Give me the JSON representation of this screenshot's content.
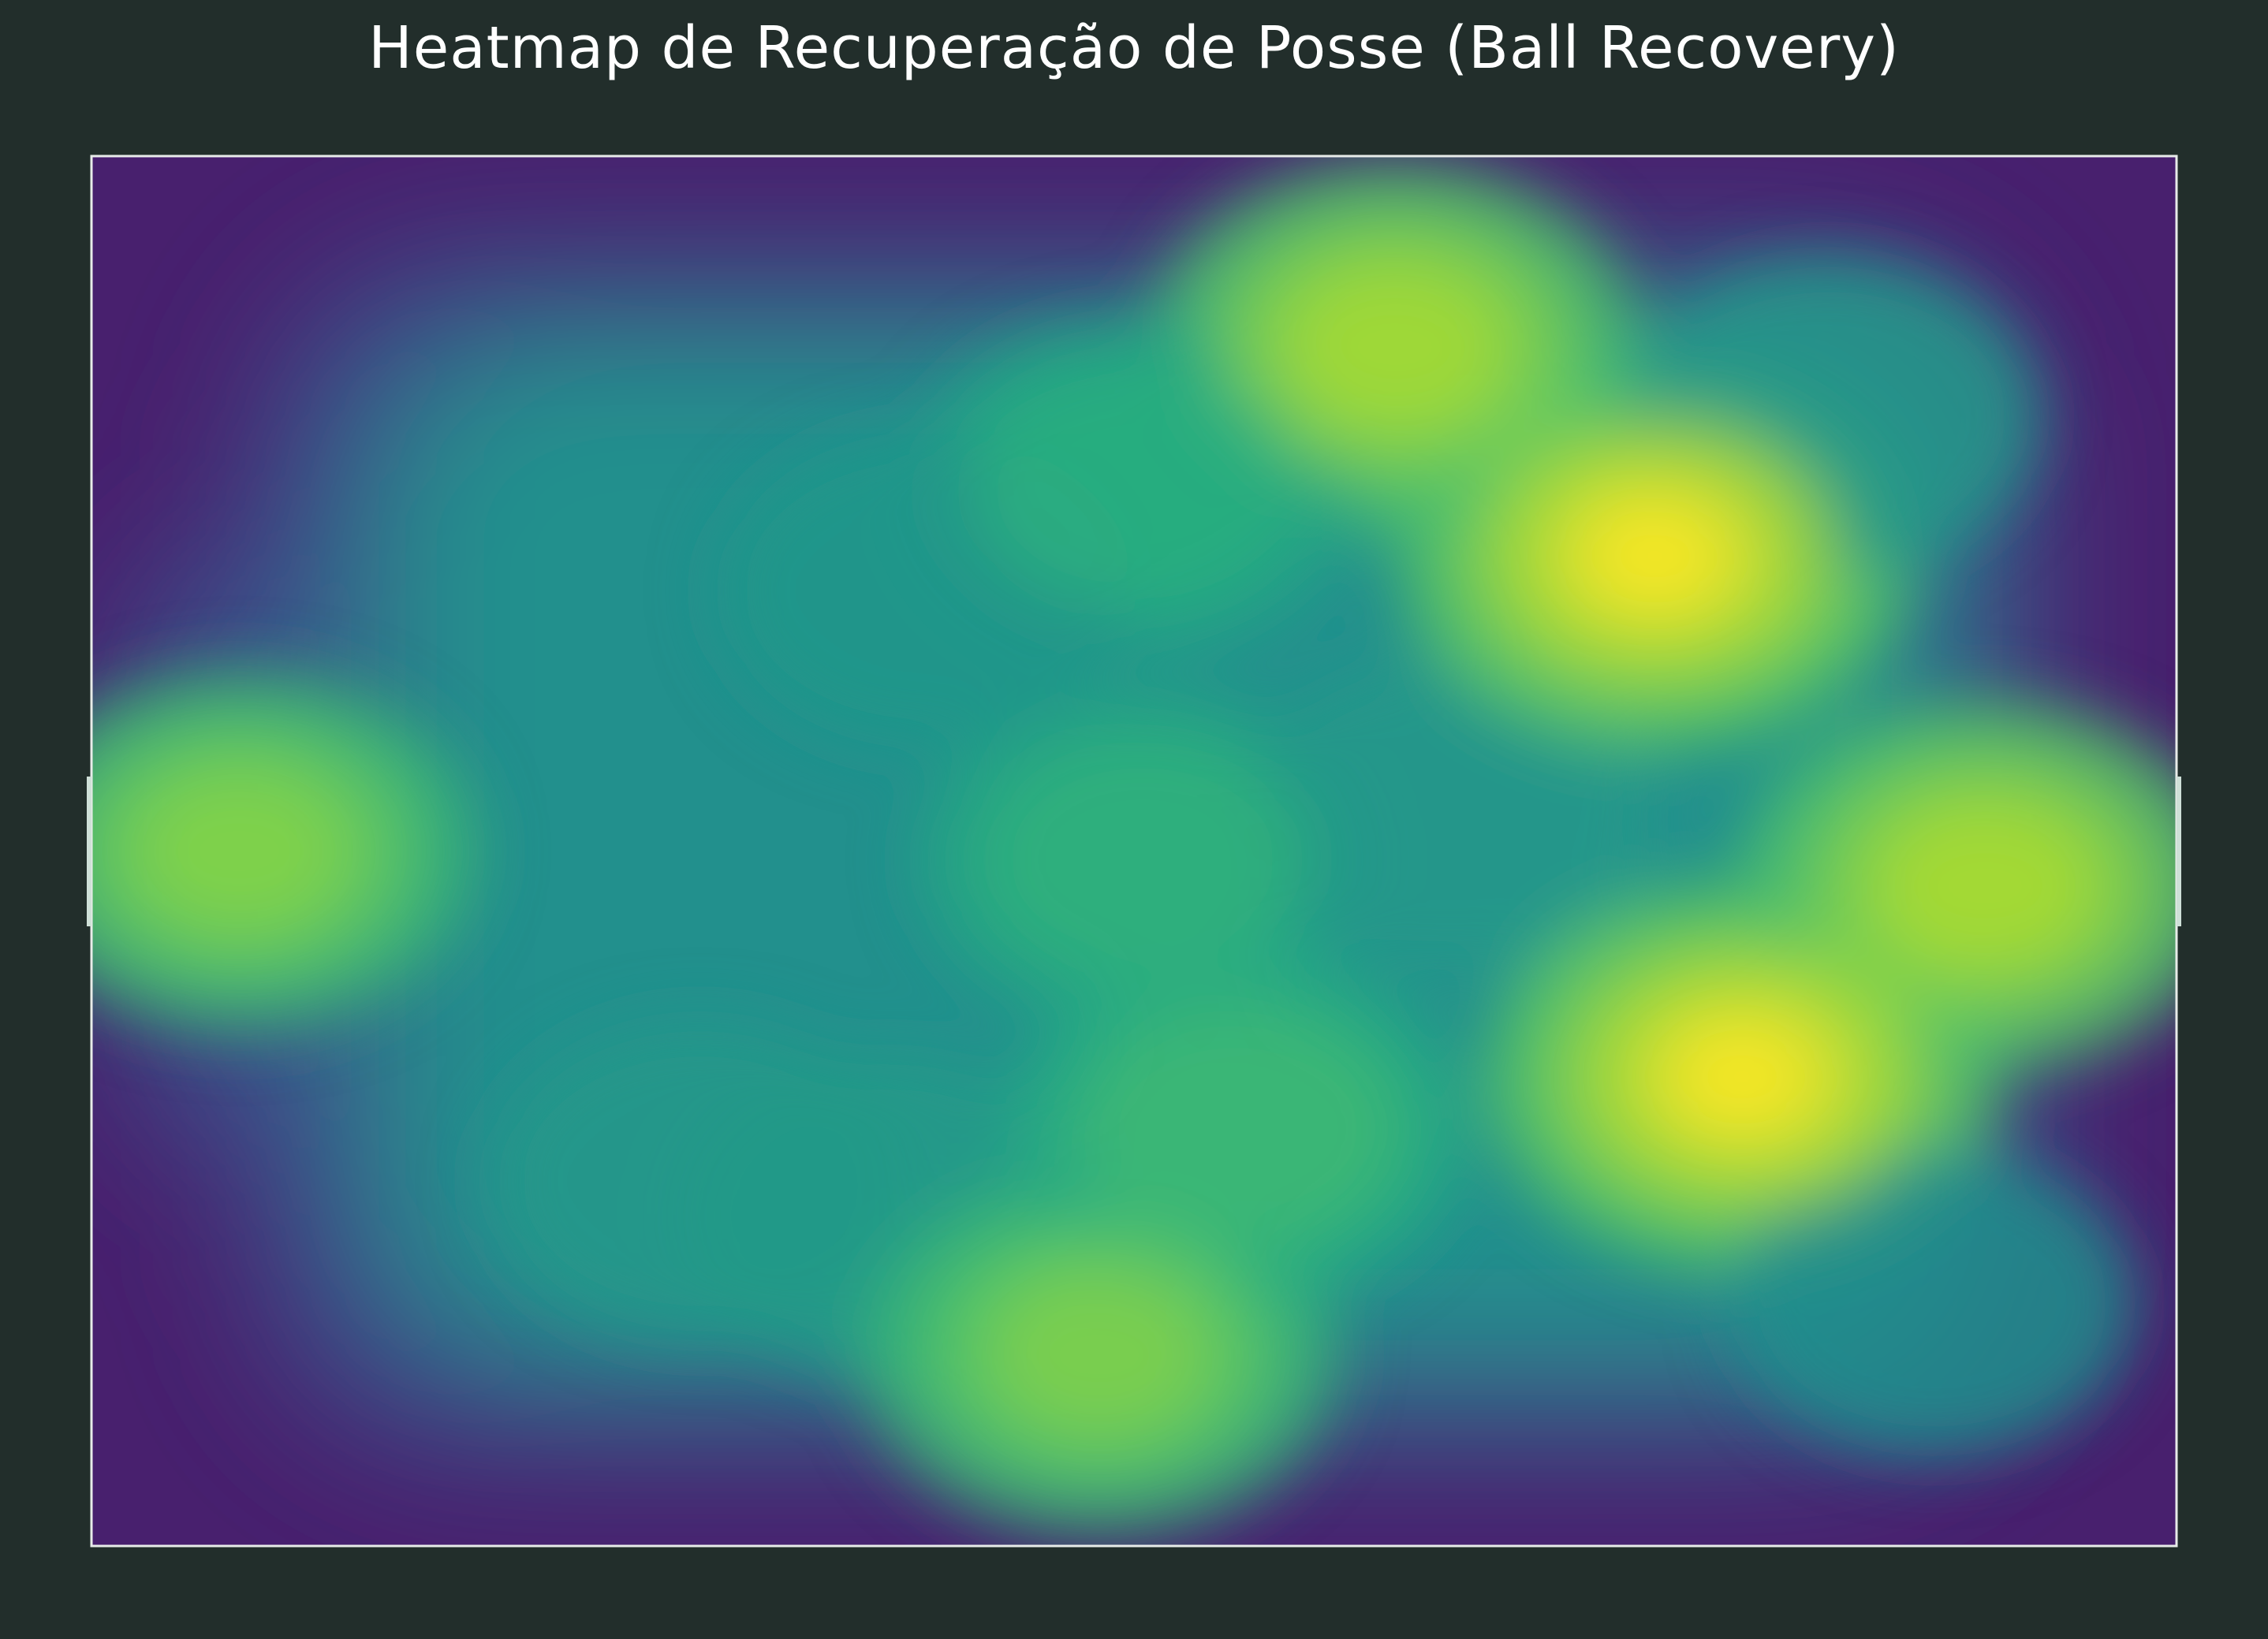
{
  "chart_data": {
    "type": "heatmap",
    "title": "Heatmap de Recuperação de Posse (Ball Recovery)",
    "xlabel": "",
    "ylabel": "",
    "xlim": [
      0,
      120
    ],
    "ylim": [
      0,
      80
    ],
    "grid": false,
    "legend": "none",
    "colormap": "viridis",
    "background_color": "#222e2b",
    "pitch_line_color": "#e8ece9",
    "base_color": "#48206e",
    "hotspots": [
      {
        "x": 8.5,
        "y": 40,
        "intensity": 0.86
      },
      {
        "x": 23,
        "y": 40,
        "intensity": 0.42
      },
      {
        "x": 35,
        "y": 59,
        "intensity": 0.6
      },
      {
        "x": 46,
        "y": 61,
        "intensity": 0.62
      },
      {
        "x": 58,
        "y": 69,
        "intensity": 0.85
      },
      {
        "x": 60.5,
        "y": 40.5,
        "intensity": 0.72
      },
      {
        "x": 66,
        "y": 56,
        "intensity": 0.76
      },
      {
        "x": 78,
        "y": 38,
        "intensity": 0.6
      },
      {
        "x": 95,
        "y": 53,
        "intensity": 1.0
      },
      {
        "x": 109,
        "y": 42,
        "intensity": 0.93
      },
      {
        "x": 90,
        "y": 23,
        "intensity": 1.0
      },
      {
        "x": 75,
        "y": 11,
        "intensity": 0.92
      },
      {
        "x": 60,
        "y": 19,
        "intensity": 0.7
      },
      {
        "x": 48,
        "y": 25,
        "intensity": 0.58
      },
      {
        "x": 100,
        "y": 15,
        "intensity": 0.6
      },
      {
        "x": 106,
        "y": 66,
        "intensity": 0.52
      }
    ]
  }
}
